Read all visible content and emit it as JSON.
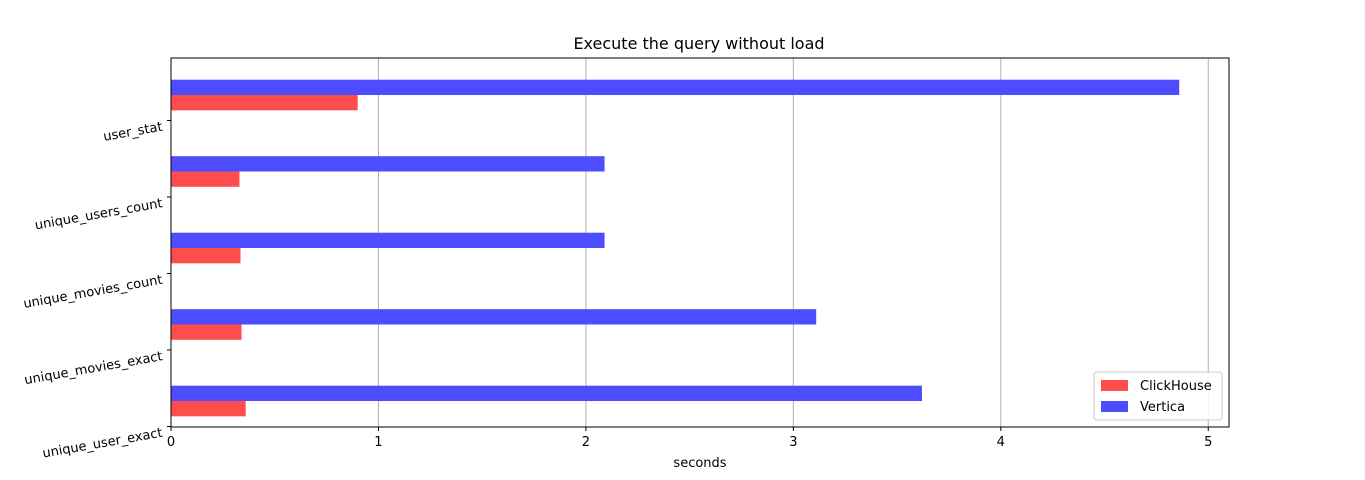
{
  "chart_data": {
    "type": "bar",
    "orientation": "horizontal",
    "title": "Execute the query without load",
    "xlabel": "seconds",
    "ylabel": "",
    "xlim": [
      0,
      5.1
    ],
    "x_ticks": [
      "0",
      "1",
      "2",
      "3",
      "4",
      "5"
    ],
    "grid": "x",
    "legend_position": "lower-right",
    "categories": [
      "unique_user_exact",
      "unique_movies_exact",
      "unique_movies_count",
      "unique_users_count",
      "user_stat"
    ],
    "series": [
      {
        "name": "ClickHouse",
        "color": "#ff4d4d",
        "values": [
          0.36,
          0.34,
          0.335,
          0.33,
          0.9
        ]
      },
      {
        "name": "Vertica",
        "color": "#4d4dff",
        "values": [
          3.62,
          3.11,
          2.09,
          2.09,
          4.86
        ]
      }
    ]
  }
}
